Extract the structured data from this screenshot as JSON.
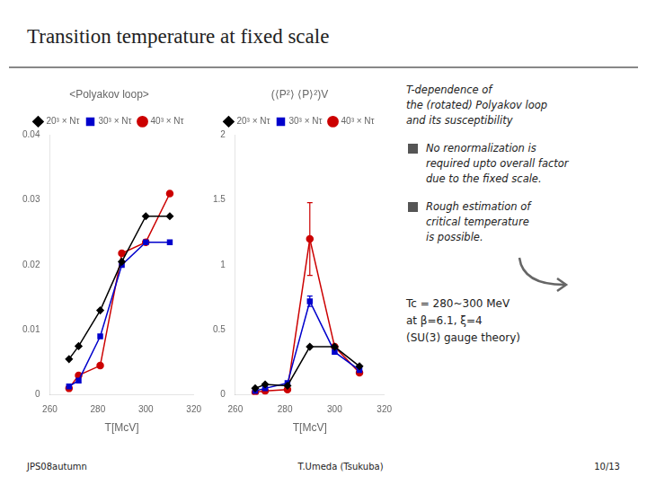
{
  "title": "Transition temperature at fixed scale",
  "chart_data": [
    {
      "type": "line",
      "title": "<Polyakov loop>",
      "xlabel": "T[McV]",
      "x": [
        268,
        272,
        281,
        290,
        300,
        310
      ],
      "xlim": [
        260,
        320
      ],
      "xticks": [
        260,
        280,
        300,
        320
      ],
      "ylim": [
        0,
        0.04
      ],
      "yticks": [
        0,
        0.01,
        0.02,
        0.03,
        0.04
      ],
      "grid": false,
      "legend": "top",
      "series": [
        {
          "name": "20³ × Nτ",
          "color": "#000000",
          "marker": "diamond",
          "values": [
            0.0055,
            0.0075,
            0.013,
            0.0205,
            0.0275,
            0.0275
          ]
        },
        {
          "name": "30³ × Nτ",
          "color": "#0000cc",
          "marker": "square",
          "values": [
            0.0013,
            0.0022,
            0.009,
            0.02,
            0.0235,
            0.0235
          ]
        },
        {
          "name": "40³ × Nτ",
          "color": "#cc0000",
          "marker": "circle",
          "values": [
            0.001,
            0.003,
            0.0045,
            0.0218,
            0.0235,
            0.031
          ]
        }
      ]
    },
    {
      "type": "line",
      "title": "(⟨P²⟩ ⟨P⟩²)V",
      "xlabel": "T[McV]",
      "x": [
        268,
        272,
        281,
        290,
        300,
        310
      ],
      "xlim": [
        260,
        320
      ],
      "xticks": [
        260,
        280,
        300,
        320
      ],
      "ylim": [
        0,
        2
      ],
      "yticks": [
        0,
        0.5,
        1,
        1.5,
        2
      ],
      "grid": false,
      "legend": "top",
      "series": [
        {
          "name": "20³ × Nτ",
          "color": "#000000",
          "marker": "diamond",
          "values": [
            0.05,
            0.08,
            0.07,
            0.37,
            0.37,
            0.22
          ],
          "errors": [
            0,
            0,
            0,
            0,
            0,
            0
          ]
        },
        {
          "name": "30³ × Nτ",
          "color": "#0000cc",
          "marker": "square",
          "values": [
            0.03,
            0.05,
            0.09,
            0.72,
            0.33,
            0.19
          ],
          "errors": [
            0,
            0,
            0,
            0.04,
            0,
            0
          ]
        },
        {
          "name": "40³ × Nτ",
          "color": "#cc0000",
          "marker": "circle",
          "values": [
            0.02,
            0.03,
            0.04,
            1.2,
            0.37,
            0.17
          ],
          "errors": [
            0,
            0,
            0,
            0.28,
            0,
            0
          ]
        }
      ]
    }
  ],
  "annotations": [
    {
      "text": [
        "T-dependence of",
        "the (rotated) Polyakov loop",
        "and its susceptibility"
      ]
    },
    {
      "text": [
        "No renormalization is",
        "required upto overall factor",
        "due to the fixed scale."
      ],
      "marker": "square"
    },
    {
      "text": [
        "Rough estimation of",
        "critical temperature",
        "is possible."
      ],
      "marker": "square"
    },
    {
      "text": [
        "Tc = 280~300 MeV",
        "at β=6.1, ξ=4",
        "(SU(3) gauge theory)"
      ]
    }
  ],
  "footer": [
    "JPS08autumn",
    "T.Umeda (Tsukuba)",
    "10/13"
  ]
}
